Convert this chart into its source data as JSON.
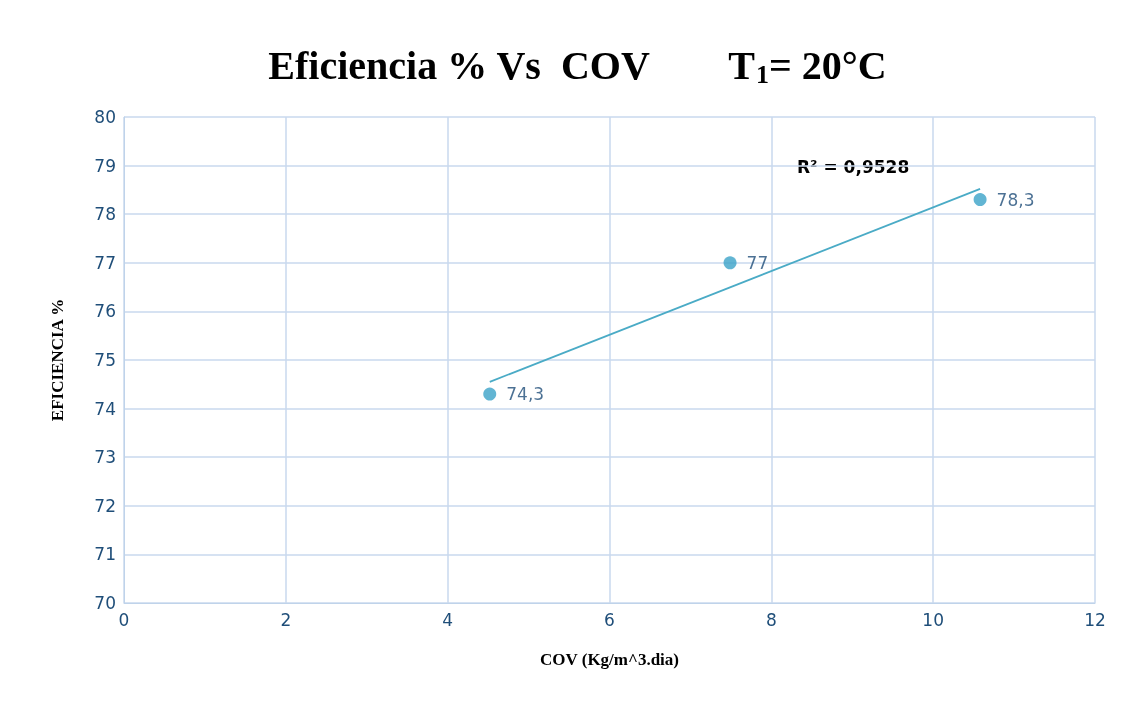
{
  "chart_data": {
    "type": "scatter",
    "title": "Eficiencia % Vs  COV        T$_{1}$= 20°C",
    "xlabel": "COV (Kg/m^3.dia)",
    "ylabel": "EFICIENCIA %",
    "xlim": [
      0,
      12
    ],
    "xticks": [
      0,
      2,
      4,
      6,
      8,
      10,
      12
    ],
    "ylim": [
      70,
      80
    ],
    "yticks": [
      70,
      71,
      72,
      73,
      74,
      75,
      76,
      77,
      78,
      79,
      80
    ],
    "grid": true,
    "series": [
      {
        "color": "#3ba3c8",
        "marker": "circle",
        "x": [
          4.52,
          7.49,
          10.58
        ],
        "values": [
          74.3,
          77,
          78.3
        ],
        "value_labels": [
          "74,3",
          "77",
          "78,3"
        ]
      },
      {
        "type": "line",
        "color": "#4aabc6",
        "marker": "none",
        "line_style": "solid",
        "x": [
          4.52,
          10.58
        ],
        "values": [
          74.55,
          78.52
        ]
      }
    ],
    "annotations": [
      "R² = 0,9528"
    ]
  }
}
